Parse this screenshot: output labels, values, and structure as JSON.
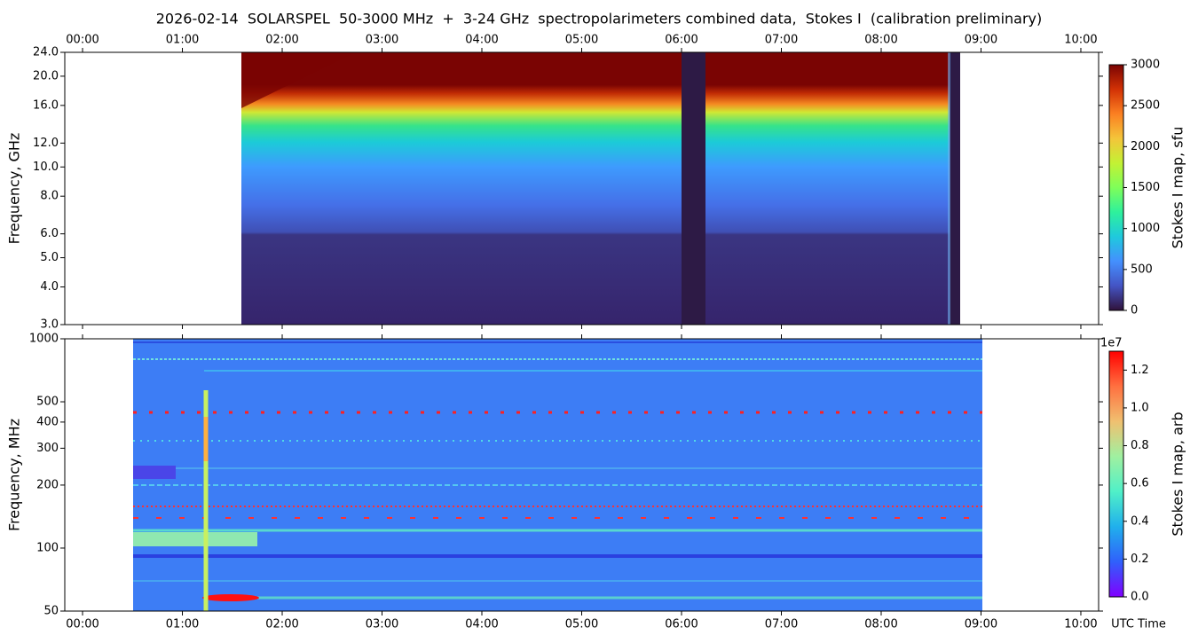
{
  "chart_data": [
    {
      "type": "heatmap",
      "title": "2026-02-14  SOLARSPEL  50-3000 MHz  +  3-24 GHz  spectropolarimeters combined data,  Stokes I  (calibration preliminary)",
      "xaxis_position": "top",
      "xlim": [
        -0.178,
        10.178
      ],
      "xticks": [
        {
          "value": 0,
          "label": "00:00"
        },
        {
          "value": 1,
          "label": "01:00"
        },
        {
          "value": 2,
          "label": "02:00"
        },
        {
          "value": 3,
          "label": "03:00"
        },
        {
          "value": 4,
          "label": "04:00"
        },
        {
          "value": 5,
          "label": "05:00"
        },
        {
          "value": 6,
          "label": "06:00"
        },
        {
          "value": 7,
          "label": "07:00"
        },
        {
          "value": 8,
          "label": "08:00"
        },
        {
          "value": 9,
          "label": "09:00"
        },
        {
          "value": 10,
          "label": "10:00"
        }
      ],
      "ylabel": "Frequency, GHz",
      "yscale": "log",
      "ylim": [
        3,
        24
      ],
      "yticks": [
        {
          "value": 3,
          "label": "3.0"
        },
        {
          "value": 4,
          "label": "4.0"
        },
        {
          "value": 5,
          "label": "5.0"
        },
        {
          "value": 6,
          "label": "6.0"
        },
        {
          "value": 8,
          "label": "8.0"
        },
        {
          "value": 10,
          "label": "10.0"
        },
        {
          "value": 12,
          "label": "12.0"
        },
        {
          "value": 16,
          "label": "16.0"
        },
        {
          "value": 20,
          "label": "20.0"
        },
        {
          "value": 24,
          "label": "24.0"
        }
      ],
      "colorbar": {
        "label": "Stokes I map, sfu",
        "lim": [
          0,
          3000
        ],
        "ticks": [
          0,
          500,
          1000,
          1500,
          2000,
          2500,
          3000
        ],
        "colormap": [
          "#30123b",
          "#4454c4",
          "#4490fe",
          "#1fc9dd",
          "#2ef19c",
          "#7ffe59",
          "#c3f134",
          "#f4c53a",
          "#fb8022",
          "#d23105",
          "#7a0403"
        ]
      }
    },
    {
      "type": "heatmap",
      "xaxis_position": "bottom",
      "xlabel": "UTC Time",
      "xlim": [
        -0.178,
        10.178
      ],
      "xticks": [
        {
          "value": 0,
          "label": "00:00"
        },
        {
          "value": 1,
          "label": "01:00"
        },
        {
          "value": 2,
          "label": "02:00"
        },
        {
          "value": 3,
          "label": "03:00"
        },
        {
          "value": 4,
          "label": "04:00"
        },
        {
          "value": 5,
          "label": "05:00"
        },
        {
          "value": 6,
          "label": "06:00"
        },
        {
          "value": 7,
          "label": "07:00"
        },
        {
          "value": 8,
          "label": "08:00"
        },
        {
          "value": 9,
          "label": "09:00"
        },
        {
          "value": 10,
          "label": "10:00"
        }
      ],
      "ylabel": "Frequency, MHz",
      "yscale": "log",
      "ylim": [
        50,
        1000
      ],
      "yticks": [
        50,
        100,
        200,
        300,
        400,
        500,
        1000
      ],
      "colorbar": {
        "label": "Stokes I map, arb",
        "offset_label": "1e7",
        "lim": [
          0,
          1.3
        ],
        "ticks": [
          {
            "value": 0,
            "label": "0.0"
          },
          {
            "value": 0.2,
            "label": "0.2"
          },
          {
            "value": 0.4,
            "label": "0.4"
          },
          {
            "value": 0.6,
            "label": "0.6"
          },
          {
            "value": 0.8,
            "label": "0.8"
          },
          {
            "value": 1.0,
            "label": "1.0"
          },
          {
            "value": 1.2,
            "label": "1.2"
          }
        ],
        "colormap": [
          "#8000ff",
          "#3060fb",
          "#20b0ec",
          "#50f0c8",
          "#a0f0a0",
          "#f0c070",
          "#ff7040",
          "#ff0000"
        ]
      }
    }
  ]
}
